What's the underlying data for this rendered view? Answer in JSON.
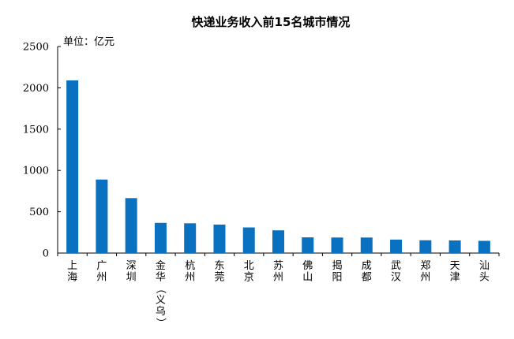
{
  "chart_data": {
    "type": "bar",
    "title": "快递业务收入前15名城市情况",
    "unit_label": "单位：亿元",
    "categories": [
      "上海",
      "广州",
      "深圳",
      "金华（义乌）",
      "杭州",
      "东莞",
      "北京",
      "苏州",
      "佛山",
      "揭阳",
      "成都",
      "武汉",
      "郑州",
      "天津",
      "汕头"
    ],
    "values": [
      2090,
      890,
      665,
      365,
      360,
      345,
      310,
      275,
      190,
      188,
      188,
      163,
      155,
      153,
      148
    ],
    "ylim": [
      0,
      2500
    ],
    "yticks": [
      0,
      500,
      1000,
      1500,
      2000,
      2500
    ],
    "grid": false,
    "legend": "none",
    "bar_color": "#0a70c0"
  }
}
